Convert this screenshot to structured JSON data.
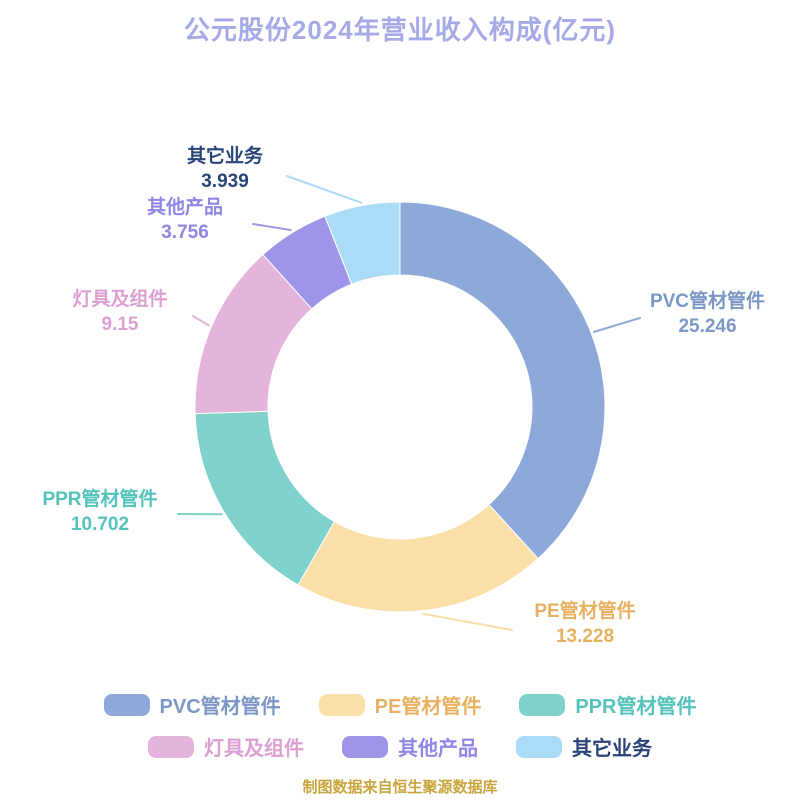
{
  "title": "公元股份2024年营业收入构成(亿元)",
  "caption": "制图数据来自恒生聚源数据库",
  "colors": {
    "title": "#A5A9E5",
    "caption": "#C7A53C",
    "background": "#FFFFFF"
  },
  "chart_data": {
    "type": "pie",
    "shape": "donut",
    "title": "公元股份2024年营业收入构成(亿元)",
    "unit": "亿元",
    "total": 66.021,
    "start_angle": "top",
    "direction": "clockwise",
    "legend_position": "bottom",
    "slices": [
      {
        "name": "PVC管材管件",
        "value": 25.246,
        "color": "#8CA9D9",
        "label_color": "#7C97C5"
      },
      {
        "name": "PE管材管件",
        "value": 13.228,
        "color": "#FADFA9",
        "label_color": "#E8B162"
      },
      {
        "name": "PPR管材管件",
        "value": 10.702,
        "color": "#7FD1CB",
        "label_color": "#54C3BB"
      },
      {
        "name": "灯具及组件",
        "value": 9.15,
        "color": "#E5B4DC",
        "label_color": "#DC9FD2"
      },
      {
        "name": "其他产品",
        "value": 3.756,
        "color": "#9C95E8",
        "label_color": "#8F86E6"
      },
      {
        "name": "其它业务",
        "value": 3.939,
        "color": "#AADCF7",
        "label_color": "#2A4479"
      }
    ]
  }
}
